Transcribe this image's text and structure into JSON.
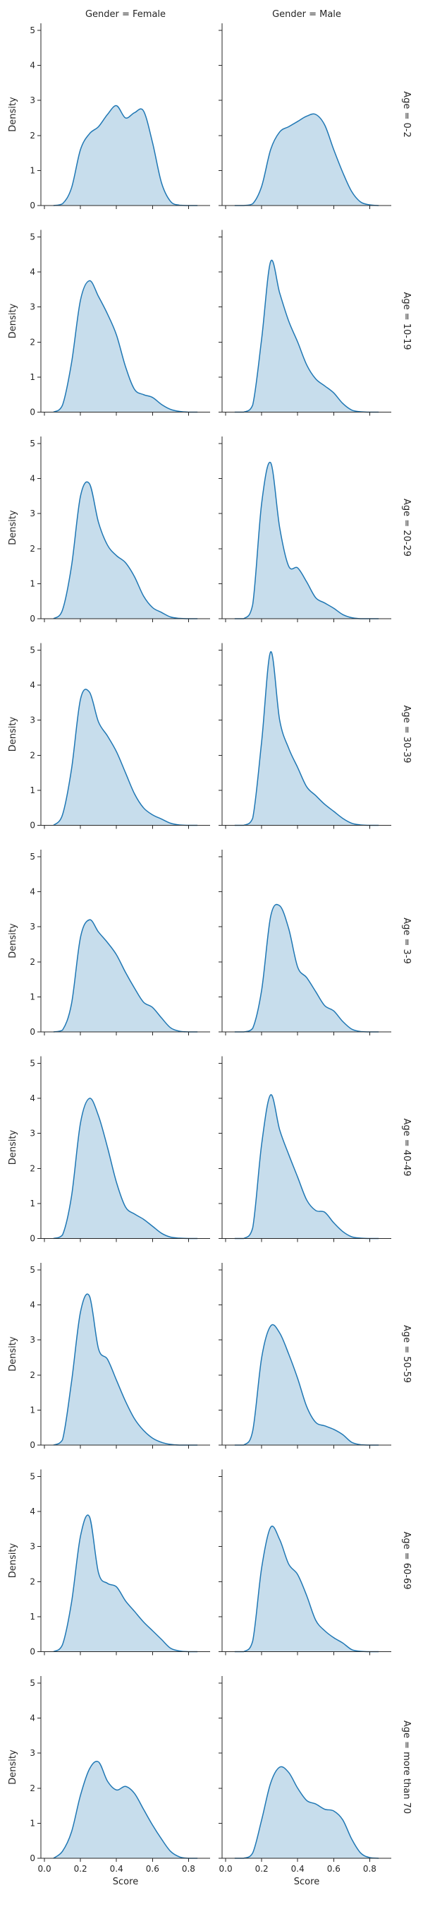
{
  "chart_data": {
    "type": "area",
    "kind": "kde-facet-grid",
    "xlabel": "Score",
    "ylabel": "Density",
    "xticks": [
      "0.0",
      "0.2",
      "0.4",
      "0.6",
      "0.8"
    ],
    "yticks": [
      "0",
      "1",
      "2",
      "3",
      "4",
      "5"
    ],
    "xlim": [
      -0.02,
      0.92
    ],
    "ylim": [
      0,
      5.2
    ],
    "fill_color": "#1f77b4",
    "columns": [
      "Gender = Female",
      "Gender = Male"
    ],
    "rows": [
      "Age = 0-2",
      "Age = 10-19",
      "Age = 20-29",
      "Age = 30-39",
      "Age = 3-9",
      "Age = 40-49",
      "Age = 50-59",
      "Age = 60-69",
      "Age = more than 70"
    ],
    "x": [
      0.05,
      0.1,
      0.15,
      0.2,
      0.25,
      0.3,
      0.35,
      0.4,
      0.45,
      0.5,
      0.55,
      0.6,
      0.65,
      0.7,
      0.75,
      0.8,
      0.85
    ],
    "panels": [
      [
        [
          0.0,
          0.05,
          0.5,
          1.6,
          2.05,
          2.25,
          2.6,
          2.85,
          2.5,
          2.65,
          2.7,
          1.8,
          0.65,
          0.12,
          0.01,
          0.0,
          0.0
        ],
        [
          0.0,
          0.0,
          0.05,
          0.55,
          1.6,
          2.1,
          2.25,
          2.4,
          2.55,
          2.6,
          2.3,
          1.6,
          0.95,
          0.4,
          0.1,
          0.02,
          0.0
        ]
      ],
      [
        [
          0.0,
          0.2,
          1.4,
          3.2,
          3.75,
          3.3,
          2.8,
          2.2,
          1.3,
          0.65,
          0.5,
          0.42,
          0.22,
          0.08,
          0.02,
          0.0,
          0.0
        ],
        [
          0.0,
          0.0,
          0.2,
          2.1,
          4.3,
          3.4,
          2.6,
          2.0,
          1.35,
          0.95,
          0.75,
          0.55,
          0.25,
          0.06,
          0.01,
          0.0,
          0.0
        ]
      ],
      [
        [
          0.0,
          0.25,
          1.5,
          3.5,
          3.85,
          2.75,
          2.1,
          1.8,
          1.6,
          1.2,
          0.65,
          0.32,
          0.18,
          0.05,
          0.01,
          0.0,
          0.0
        ],
        [
          0.0,
          0.0,
          0.4,
          3.3,
          4.45,
          2.6,
          1.5,
          1.45,
          1.05,
          0.6,
          0.45,
          0.3,
          0.12,
          0.03,
          0.0,
          0.0,
          0.0
        ]
      ],
      [
        [
          0.0,
          0.3,
          1.6,
          3.6,
          3.8,
          2.95,
          2.55,
          2.1,
          1.5,
          0.9,
          0.5,
          0.3,
          0.18,
          0.06,
          0.01,
          0.0,
          0.0
        ],
        [
          0.0,
          0.0,
          0.2,
          2.4,
          4.95,
          3.0,
          2.2,
          1.65,
          1.1,
          0.85,
          0.6,
          0.4,
          0.2,
          0.06,
          0.01,
          0.0,
          0.0
        ]
      ],
      [
        [
          0.0,
          0.05,
          0.8,
          2.7,
          3.2,
          2.85,
          2.55,
          2.2,
          1.7,
          1.25,
          0.85,
          0.7,
          0.4,
          0.12,
          0.02,
          0.0,
          0.0
        ],
        [
          0.0,
          0.0,
          0.1,
          1.2,
          3.3,
          3.6,
          2.95,
          1.85,
          1.55,
          1.15,
          0.75,
          0.6,
          0.3,
          0.08,
          0.01,
          0.0,
          0.0
        ]
      ],
      [
        [
          0.0,
          0.1,
          1.2,
          3.3,
          4.0,
          3.5,
          2.6,
          1.6,
          0.9,
          0.7,
          0.55,
          0.35,
          0.15,
          0.04,
          0.01,
          0.0,
          0.0
        ],
        [
          0.0,
          0.0,
          0.3,
          2.7,
          4.1,
          3.1,
          2.4,
          1.75,
          1.1,
          0.8,
          0.75,
          0.45,
          0.2,
          0.05,
          0.01,
          0.0,
          0.0
        ]
      ],
      [
        [
          0.0,
          0.15,
          1.8,
          3.8,
          4.25,
          2.75,
          2.45,
          1.85,
          1.25,
          0.75,
          0.42,
          0.2,
          0.08,
          0.02,
          0.0,
          0.0,
          0.0
        ],
        [
          0.0,
          0.0,
          0.4,
          2.5,
          3.4,
          3.2,
          2.6,
          1.9,
          1.1,
          0.65,
          0.55,
          0.45,
          0.3,
          0.08,
          0.01,
          0.0,
          0.0
        ]
      ],
      [
        [
          0.0,
          0.2,
          1.4,
          3.3,
          3.85,
          2.25,
          1.95,
          1.85,
          1.45,
          1.15,
          0.85,
          0.6,
          0.35,
          0.1,
          0.02,
          0.0,
          0.0
        ],
        [
          0.0,
          0.0,
          0.3,
          2.4,
          3.55,
          3.2,
          2.5,
          2.2,
          1.6,
          0.9,
          0.6,
          0.4,
          0.25,
          0.06,
          0.01,
          0.0,
          0.0
        ]
      ],
      [
        [
          0.0,
          0.2,
          0.75,
          1.8,
          2.55,
          2.75,
          2.2,
          1.95,
          2.05,
          1.85,
          1.4,
          0.95,
          0.55,
          0.2,
          0.04,
          0.0,
          0.0
        ],
        [
          0.0,
          0.0,
          0.15,
          1.1,
          2.15,
          2.6,
          2.45,
          2.0,
          1.65,
          1.55,
          1.4,
          1.35,
          1.1,
          0.55,
          0.15,
          0.02,
          0.0
        ]
      ]
    ]
  }
}
